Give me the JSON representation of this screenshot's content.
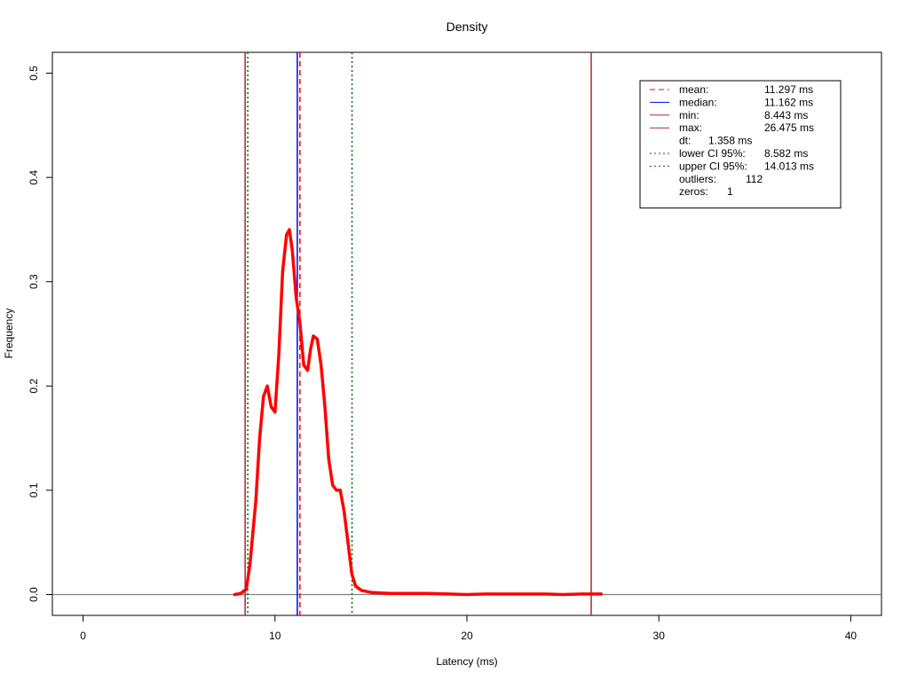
{
  "chart_data": {
    "type": "line",
    "title": "Density",
    "xlabel": "Latency (ms)",
    "ylabel": "Frequency",
    "xlim": [
      -1.6,
      41.6
    ],
    "ylim": [
      -0.02,
      0.52
    ],
    "x_ticks": [
      "0",
      "10",
      "20",
      "30",
      "40"
    ],
    "y_ticks": [
      "0.0",
      "0.1",
      "0.2",
      "0.3",
      "0.4",
      "0.5"
    ],
    "grid": false,
    "legend_position": "top-right",
    "series": [
      {
        "color": "#ff0000",
        "x": [
          7.9,
          8.2,
          8.5,
          8.7,
          9.0,
          9.2,
          9.4,
          9.6,
          9.8,
          10.0,
          10.2,
          10.4,
          10.6,
          10.75,
          10.9,
          11.1,
          11.3,
          11.5,
          11.7,
          11.85,
          12.0,
          12.2,
          12.4,
          12.6,
          12.8,
          13.0,
          13.2,
          13.4,
          13.6,
          13.8,
          14.0,
          14.2,
          14.5,
          15.0,
          16.0,
          17.0,
          18.0,
          19.0,
          20.0,
          21.0,
          22.0,
          23.0,
          24.0,
          25.0,
          26.0,
          27.0
        ],
        "y": [
          0.0,
          0.001,
          0.005,
          0.03,
          0.09,
          0.15,
          0.19,
          0.2,
          0.18,
          0.175,
          0.23,
          0.31,
          0.345,
          0.35,
          0.33,
          0.285,
          0.26,
          0.22,
          0.215,
          0.235,
          0.248,
          0.245,
          0.22,
          0.18,
          0.13,
          0.105,
          0.1,
          0.1,
          0.08,
          0.05,
          0.02,
          0.008,
          0.004,
          0.002,
          0.001,
          0.001,
          0.001,
          0.0005,
          0.0,
          0.0005,
          0.0005,
          0.0005,
          0.0005,
          0.0,
          0.0005,
          0.0005
        ]
      }
    ],
    "vlines": [
      {
        "name": "mean",
        "x": 11.297,
        "color": "#ff0000",
        "dash": "dashed"
      },
      {
        "name": "median",
        "x": 11.162,
        "color": "#0000ff",
        "dash": "solid"
      },
      {
        "name": "min",
        "x": 8.443,
        "color": "#a52a2a",
        "dash": "solid"
      },
      {
        "name": "max",
        "x": 26.475,
        "color": "#a52a2a",
        "dash": "solid"
      },
      {
        "name": "lower CI 95%",
        "x": 8.582,
        "color": "#006400",
        "dash": "dotted"
      },
      {
        "name": "upper CI 95%",
        "x": 14.013,
        "color": "#006400",
        "dash": "dotted"
      }
    ],
    "hline": {
      "y": 0,
      "color": "#808080"
    },
    "legend": [
      {
        "label": "mean:",
        "value": "11.297 ms",
        "color": "#ff0000",
        "dash": "dashed"
      },
      {
        "label": "median:",
        "value": "11.162 ms",
        "color": "#0000ff",
        "dash": "solid"
      },
      {
        "label": "min:",
        "value": "8.443 ms",
        "color": "#a52a2a",
        "dash": "solid"
      },
      {
        "label": "max:",
        "value": "26.475 ms",
        "color": "#a52a2a",
        "dash": "solid"
      },
      {
        "label": "dt:",
        "value": "1.358 ms",
        "color": "",
        "dash": ""
      },
      {
        "label": "lower CI 95%:",
        "value": "8.582 ms",
        "color": "#006400",
        "dash": "dotted"
      },
      {
        "label": "upper CI 95%:",
        "value": "14.013 ms",
        "color": "#006400",
        "dash": "dotted"
      },
      {
        "label": "outliers:",
        "value": "112",
        "color": "",
        "dash": ""
      },
      {
        "label": "zeros:",
        "value": "1",
        "color": "",
        "dash": ""
      }
    ]
  }
}
